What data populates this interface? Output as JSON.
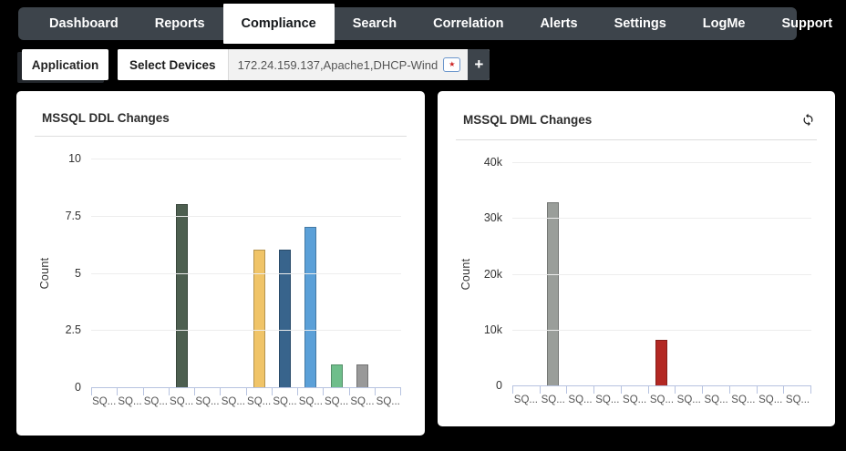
{
  "nav": {
    "items": [
      {
        "label": "Dashboard"
      },
      {
        "label": "Reports"
      },
      {
        "label": "Compliance"
      },
      {
        "label": "Search"
      },
      {
        "label": "Correlation"
      },
      {
        "label": "Alerts"
      },
      {
        "label": "Settings"
      },
      {
        "label": "LogMe"
      },
      {
        "label": "Support"
      }
    ],
    "active": "Compliance"
  },
  "filter": {
    "application_label": "Application",
    "select_devices_label": "Select Devices",
    "devices_value": "172.24.159.137,Apache1,DHCP-Wind",
    "picker_star": "★",
    "add_label": "+"
  },
  "colors": {
    "nav_bg": "#3d444b",
    "background": "#000000",
    "axis_line": "#b7c3e0",
    "gridline": "#ededed"
  },
  "chart_data": [
    {
      "type": "bar",
      "title": "MSSQL DDL Changes",
      "xlabel": "",
      "ylabel": "Count",
      "ylim": [
        0,
        10
      ],
      "yticks": [
        "10",
        "7.5",
        "5",
        "2.5",
        "0"
      ],
      "grid": true,
      "legend": false,
      "categories": [
        "SQ...",
        "SQ...",
        "SQ...",
        "SQ...",
        "SQ...",
        "SQ...",
        "SQ...",
        "SQ...",
        "SQ...",
        "SQ...",
        "SQ...",
        "SQ..."
      ],
      "values": [
        0,
        0,
        0,
        8,
        0,
        0,
        6,
        6,
        7,
        1,
        1,
        0
      ],
      "bar_colors": [
        null,
        null,
        null,
        "#4d5f50",
        null,
        null,
        "#f0c468",
        "#38648c",
        "#5ba0d8",
        "#6fbe8b",
        "#999999",
        null
      ]
    },
    {
      "type": "bar",
      "title": "MSSQL DML Changes",
      "xlabel": "",
      "ylabel": "Count",
      "ylim": [
        0,
        40000
      ],
      "yticks": [
        "40k",
        "30k",
        "20k",
        "10k",
        "0"
      ],
      "grid": true,
      "legend": false,
      "categories": [
        "SQ...",
        "SQ...",
        "SQ...",
        "SQ...",
        "SQ...",
        "SQ...",
        "SQ...",
        "SQ...",
        "SQ...",
        "SQ...",
        "SQ..."
      ],
      "values": [
        0,
        32800,
        0,
        0,
        0,
        8200,
        0,
        0,
        0,
        0,
        0
      ],
      "bar_colors": [
        null,
        "#9a9e9a",
        null,
        null,
        null,
        "#b32823",
        null,
        null,
        null,
        null,
        null
      ]
    }
  ]
}
